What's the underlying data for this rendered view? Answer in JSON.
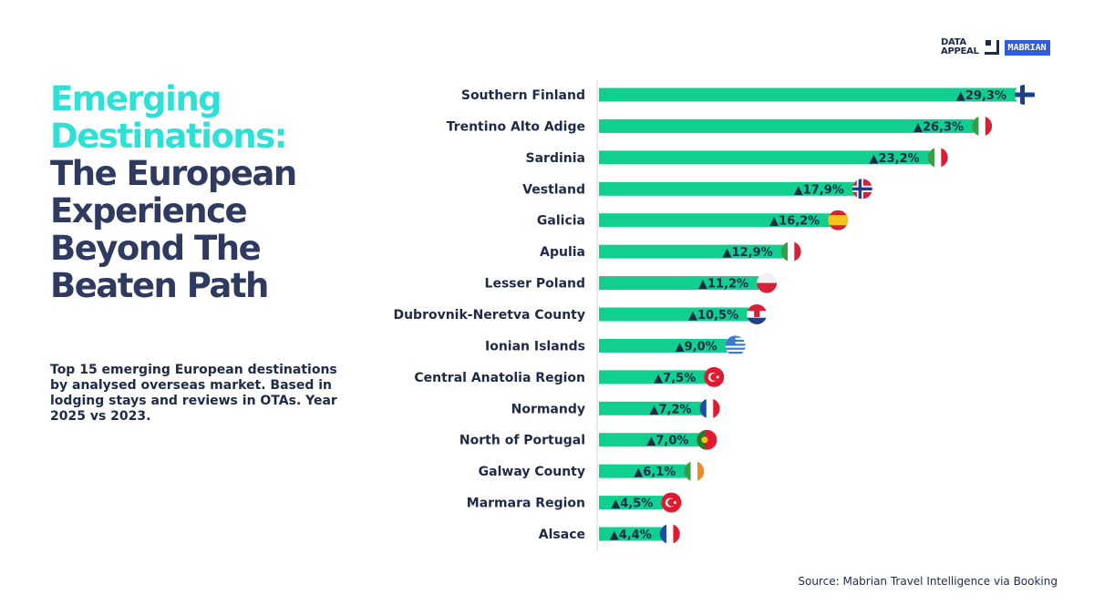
{
  "title": {
    "highlight": [
      "Emerging",
      "Destinations:"
    ],
    "main": [
      "The European",
      "Experience",
      "Beyond The",
      "Beaten Path"
    ]
  },
  "description": "Top 15 emerging European destinations by analysed overseas market. Based in lodging stays and reviews in OTAs. Year 2025 vs 2023.",
  "source": "Source: Mabrian Travel Intelligence via Booking",
  "logo": {
    "line1": "DATA",
    "line2": "APPEAL",
    "brand": "MABRIAN"
  },
  "colors": {
    "bar": "#10cf8f",
    "title_highlight": "#2fe0d6",
    "title_main": "#2e3a5f",
    "text": "#1e2a48"
  },
  "chart_data": {
    "type": "bar",
    "orientation": "horizontal",
    "categories": [
      "Southern Finland",
      "Trentino Alto Adige",
      "Sardinia",
      "Vestland",
      "Galicia",
      "Apulia",
      "Lesser Poland",
      "Dubrovnik-Neretva County",
      "Ionian Islands",
      "Central Anatolia Region",
      "Normandy",
      "North of Portugal",
      "Galway County",
      "Marmara Region",
      "Alsace"
    ],
    "values": [
      29.3,
      26.3,
      23.2,
      17.9,
      16.2,
      12.9,
      11.2,
      10.5,
      9.0,
      7.5,
      7.2,
      7.0,
      6.1,
      4.5,
      4.4
    ],
    "labels": [
      "▲29,3%",
      "▲26,3%",
      "▲23,2%",
      "▲17,9%",
      "▲16,2%",
      "▲12,9%",
      "▲11,2%",
      "▲10,5%",
      "▲9,0%",
      "▲7,5%",
      "▲7,2%",
      "▲7,0%",
      "▲6,1%",
      "▲4,5%",
      "▲4,4%"
    ],
    "flags": [
      "finland",
      "italy",
      "italy",
      "norway",
      "spain",
      "italy",
      "poland",
      "croatia",
      "greece",
      "turkey",
      "france",
      "portugal",
      "ireland",
      "turkey",
      "france"
    ],
    "unit": "%",
    "xlim": [
      0,
      30
    ],
    "grid": false
  }
}
